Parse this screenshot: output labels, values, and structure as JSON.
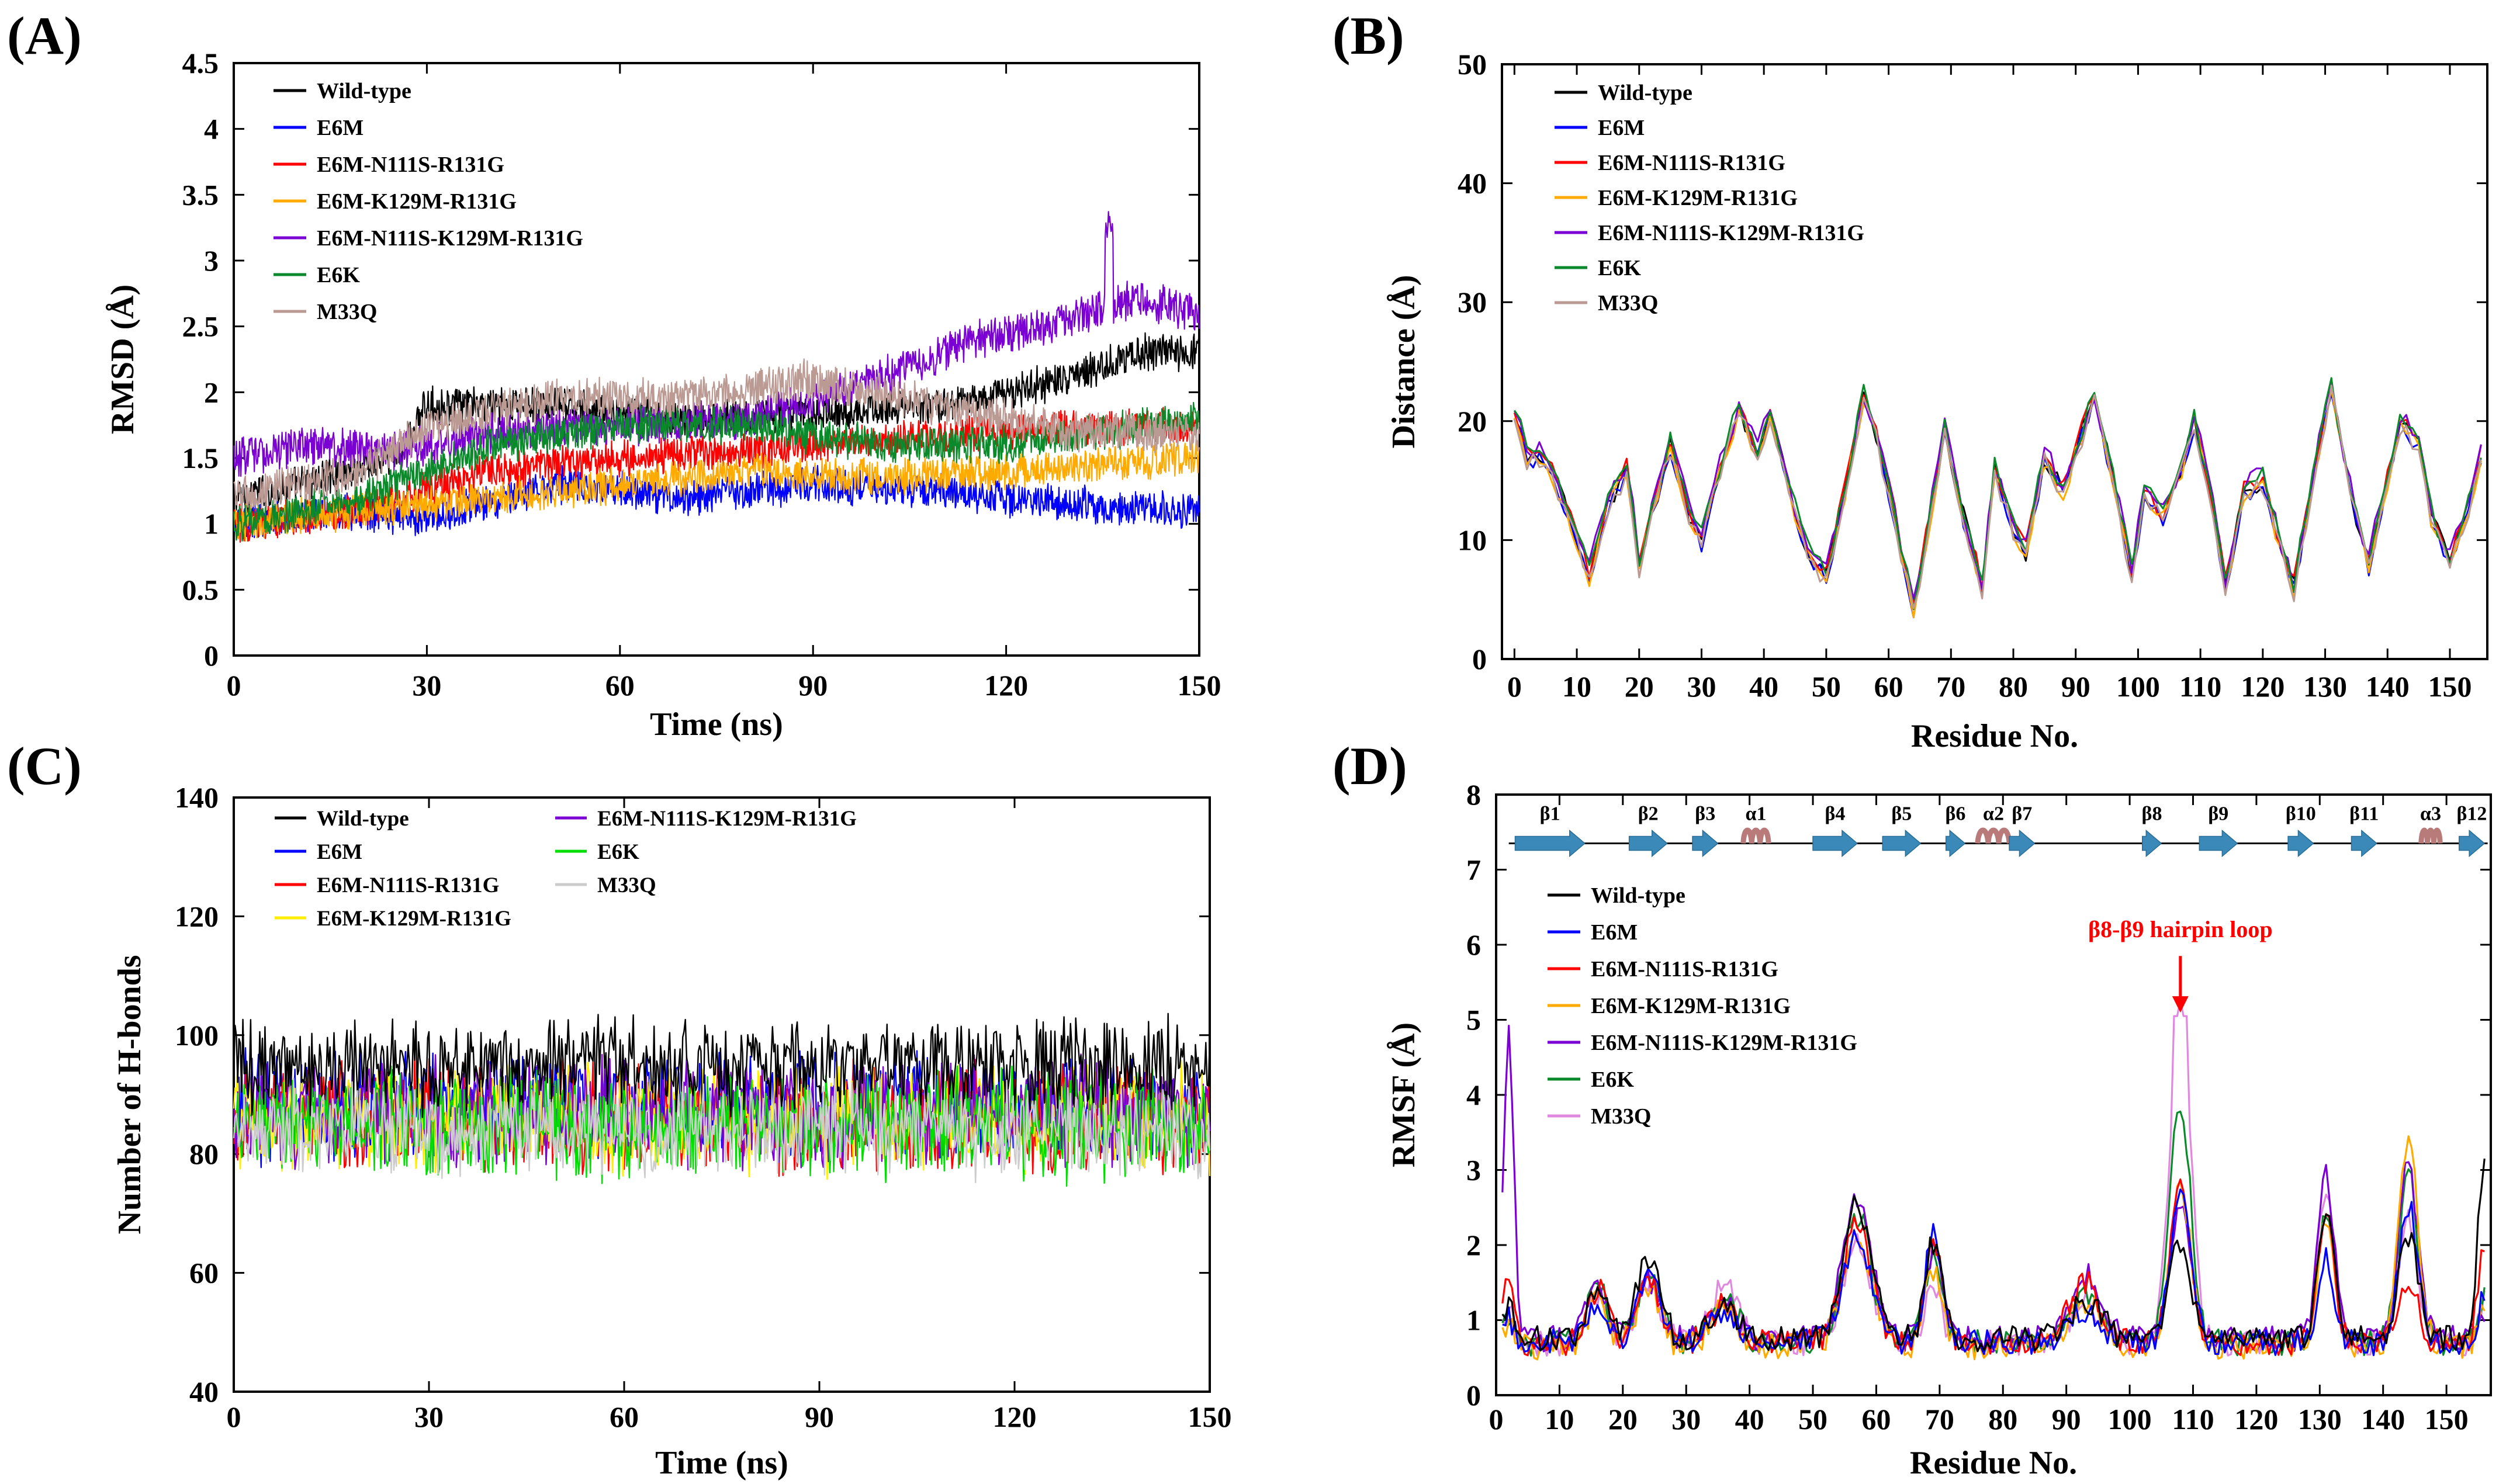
{
  "chart_data": [
    {
      "type": "line",
      "panel_label": "(A)",
      "title": "",
      "xlabel": "Time (ns)",
      "ylabel": "RMSD (Å)",
      "xlim": [
        0,
        150
      ],
      "ylim": [
        0,
        4.5
      ],
      "xticks": [
        "0",
        "30",
        "60",
        "90",
        "120",
        "150"
      ],
      "yticks": [
        "0",
        "0.5",
        "1",
        "1.5",
        "2",
        "2.5",
        "3",
        "3.5",
        "4",
        "4.5"
      ],
      "legend_position": "top-left",
      "legend_columns": 1,
      "series": [
        {
          "name": "Wild-type",
          "color": "#000000",
          "noise": 0.12,
          "x": [
            0,
            10,
            25,
            30,
            50,
            70,
            90,
            110,
            130,
            140,
            150
          ],
          "values": [
            1.2,
            1.3,
            1.5,
            1.9,
            1.9,
            1.8,
            1.85,
            1.9,
            2.1,
            2.3,
            2.3
          ]
        },
        {
          "name": "E6M",
          "color": "#0000ff",
          "noise": 0.12,
          "x": [
            0,
            15,
            30,
            50,
            70,
            90,
            110,
            130,
            150
          ],
          "values": [
            1.0,
            1.1,
            1.05,
            1.3,
            1.2,
            1.3,
            1.25,
            1.15,
            1.1
          ]
        },
        {
          "name": "E6M-N111S-R131G",
          "color": "#ff0000",
          "noise": 0.12,
          "x": [
            0,
            20,
            40,
            60,
            80,
            100,
            120,
            150
          ],
          "values": [
            1.0,
            1.1,
            1.4,
            1.5,
            1.55,
            1.65,
            1.7,
            1.75
          ]
        },
        {
          "name": "E6M-K129M-R131G",
          "color": "#ffaa00",
          "noise": 0.12,
          "x": [
            0,
            20,
            40,
            60,
            80,
            100,
            120,
            150
          ],
          "values": [
            1.0,
            1.1,
            1.2,
            1.3,
            1.4,
            1.35,
            1.4,
            1.5
          ]
        },
        {
          "name": "E6M-N111S-K129M-R131G",
          "color": "#7b00d4",
          "noise": 0.13,
          "x": [
            0,
            10,
            25,
            40,
            60,
            80,
            100,
            115,
            130,
            140,
            150
          ],
          "values": [
            1.5,
            1.6,
            1.55,
            1.7,
            1.75,
            1.8,
            2.1,
            2.4,
            2.55,
            2.7,
            2.6
          ]
        },
        {
          "name": "E6K",
          "color": "#0a8a2a",
          "noise": 0.12,
          "x": [
            0,
            20,
            40,
            60,
            80,
            100,
            120,
            150
          ],
          "values": [
            1.0,
            1.2,
            1.6,
            1.75,
            1.75,
            1.6,
            1.6,
            1.8
          ]
        },
        {
          "name": "M33Q",
          "color": "#bc9a94",
          "noise": 0.13,
          "x": [
            0,
            20,
            30,
            50,
            70,
            90,
            110,
            130,
            150
          ],
          "values": [
            1.2,
            1.4,
            1.75,
            1.95,
            1.95,
            2.1,
            1.9,
            1.7,
            1.7
          ]
        }
      ]
    },
    {
      "type": "line",
      "panel_label": "(B)",
      "title": "",
      "xlabel": "Residue No.",
      "ylabel": "Distance (Å)",
      "xlim": [
        -2,
        156
      ],
      "ylim": [
        0,
        50
      ],
      "xticks": [
        "0",
        "10",
        "20",
        "30",
        "40",
        "50",
        "60",
        "70",
        "80",
        "90",
        "100",
        "110",
        "120",
        "130",
        "140",
        "150"
      ],
      "yticks": [
        "0",
        "10",
        "20",
        "30",
        "40",
        "50"
      ],
      "legend_position": "top-left",
      "legend_columns": 1,
      "base_profile": {
        "x": [
          0,
          2,
          5,
          8,
          10,
          12,
          15,
          18,
          20,
          22,
          25,
          28,
          30,
          33,
          36,
          39,
          41,
          44,
          47,
          50,
          53,
          56,
          58,
          61,
          64,
          67,
          69,
          72,
          75,
          77,
          80,
          82,
          85,
          88,
          91,
          93,
          96,
          99,
          101,
          104,
          107,
          109,
          112,
          114,
          117,
          120,
          122,
          125,
          128,
          131,
          134,
          137,
          140,
          142,
          145,
          147,
          150,
          152,
          155
        ],
        "values": [
          21,
          17,
          17,
          13,
          10,
          7,
          13,
          16,
          8,
          12,
          18,
          12,
          10,
          16,
          21,
          17,
          21,
          14,
          9,
          7,
          14,
          22,
          19,
          12,
          4,
          13,
          19,
          12,
          6,
          16,
          11,
          9,
          17,
          14,
          19,
          22,
          15,
          7,
          14,
          12,
          16,
          20,
          13,
          6,
          14,
          15,
          11,
          6,
          15,
          23,
          14,
          8,
          15,
          20,
          18,
          12,
          8,
          11,
          17
        ]
      },
      "series": [
        {
          "name": "Wild-type",
          "color": "#000000",
          "offset": 0.0,
          "noise": 0.8
        },
        {
          "name": "E6M",
          "color": "#0000ff",
          "offset": -0.3,
          "noise": 0.7
        },
        {
          "name": "E6M-N111S-R131G",
          "color": "#ff0000",
          "offset": 0.3,
          "noise": 0.7
        },
        {
          "name": "E6M-K129M-R131G",
          "color": "#ffaa00",
          "offset": -0.2,
          "noise": 0.7
        },
        {
          "name": "E6M-N111S-K129M-R131G",
          "color": "#7b00d4",
          "offset": 0.5,
          "noise": 0.9
        },
        {
          "name": "E6K",
          "color": "#0a8a2a",
          "offset": 0.4,
          "noise": 0.8
        },
        {
          "name": "M33Q",
          "color": "#bc9a94",
          "offset": -0.4,
          "noise": 0.8
        }
      ]
    },
    {
      "type": "line",
      "panel_label": "(C)",
      "title": "",
      "xlabel": "Time (ns)",
      "ylabel": "Number of H-bonds",
      "xlim": [
        0,
        150
      ],
      "ylim": [
        40,
        140
      ],
      "xticks": [
        "0",
        "30",
        "60",
        "90",
        "120",
        "150"
      ],
      "yticks": [
        "40",
        "60",
        "80",
        "100",
        "120",
        "140"
      ],
      "legend_position": "top",
      "legend_columns": 2,
      "series": [
        {
          "name": "Wild-type",
          "color": "#000000",
          "mean": 95,
          "noise": 6
        },
        {
          "name": "E6M",
          "color": "#0000ff",
          "mean": 88,
          "noise": 7
        },
        {
          "name": "E6M-N111S-R131G",
          "color": "#ff0000",
          "mean": 86,
          "noise": 7
        },
        {
          "name": "E6M-K129M-R131G",
          "color": "#ffee00",
          "mean": 86,
          "noise": 7
        },
        {
          "name": "E6M-N111S-K129M-R131G",
          "color": "#7b00d4",
          "mean": 87,
          "noise": 7
        },
        {
          "name": "E6K",
          "color": "#00dd00",
          "mean": 85,
          "noise": 7
        },
        {
          "name": "M33Q",
          "color": "#cccccc",
          "mean": 84,
          "noise": 6
        }
      ]
    },
    {
      "type": "line",
      "panel_label": "(D)",
      "title": "",
      "xlabel": "Residue No.",
      "ylabel": "RMSF (Å)",
      "xlim": [
        0,
        157
      ],
      "ylim": [
        0,
        8
      ],
      "xticks": [
        "0",
        "10",
        "20",
        "30",
        "40",
        "50",
        "60",
        "70",
        "80",
        "90",
        "100",
        "110",
        "120",
        "130",
        "140",
        "150"
      ],
      "yticks": [
        "0",
        "1",
        "2",
        "3",
        "4",
        "5",
        "6",
        "7",
        "8"
      ],
      "legend_position": "middle-left",
      "legend_columns": 1,
      "annotation": {
        "text": "β8-β9 hairpin loop",
        "x": 108,
        "y": 5.05,
        "color": "#ff0000"
      },
      "secondary_structure": [
        {
          "label": "β1",
          "type": "strand",
          "start": 3,
          "end": 14
        },
        {
          "label": "β2",
          "type": "strand",
          "start": 21,
          "end": 27
        },
        {
          "label": "β3",
          "type": "strand",
          "start": 31,
          "end": 35
        },
        {
          "label": "α1",
          "type": "helix",
          "start": 39,
          "end": 43
        },
        {
          "label": "β4",
          "type": "strand",
          "start": 50,
          "end": 57
        },
        {
          "label": "β5",
          "type": "strand",
          "start": 61,
          "end": 67
        },
        {
          "label": "β6",
          "type": "strand",
          "start": 71,
          "end": 74
        },
        {
          "label": "α2",
          "type": "helix",
          "start": 76,
          "end": 81
        },
        {
          "label": "β7",
          "type": "strand",
          "start": 81,
          "end": 85
        },
        {
          "label": "β8",
          "type": "strand",
          "start": 102,
          "end": 105
        },
        {
          "label": "β9",
          "type": "strand",
          "start": 111,
          "end": 117
        },
        {
          "label": "β10",
          "type": "strand",
          "start": 125,
          "end": 129
        },
        {
          "label": "β11",
          "type": "strand",
          "start": 135,
          "end": 139
        },
        {
          "label": "α3",
          "type": "helix",
          "start": 146,
          "end": 149
        },
        {
          "label": "β12",
          "type": "strand",
          "start": 152,
          "end": 156
        }
      ],
      "peaks": [
        {
          "x": 2,
          "width": 0.8,
          "height": [
            0.5,
            0.3,
            0.9,
            0.3,
            4.0,
            0.3,
            0.4
          ]
        },
        {
          "x": 16,
          "width": 1.6,
          "height": [
            0.6,
            0.5,
            0.7,
            0.6,
            0.7,
            0.8,
            0.6
          ]
        },
        {
          "x": 24,
          "width": 1.8,
          "height": [
            1.1,
            0.9,
            0.9,
            0.8,
            0.8,
            0.9,
            0.8
          ]
        },
        {
          "x": 36,
          "width": 2.0,
          "height": [
            0.5,
            0.4,
            0.5,
            0.5,
            0.5,
            0.6,
            0.8
          ]
        },
        {
          "x": 57,
          "width": 2.2,
          "height": [
            1.8,
            1.4,
            1.6,
            1.5,
            1.9,
            1.7,
            1.3
          ]
        },
        {
          "x": 69,
          "width": 1.3,
          "height": [
            1.3,
            1.5,
            1.4,
            1.0,
            1.2,
            1.2,
            0.8
          ]
        },
        {
          "x": 93,
          "width": 2.5,
          "height": [
            0.5,
            0.4,
            0.8,
            0.6,
            0.9,
            0.6,
            0.5
          ]
        },
        {
          "x": 108,
          "width": 1.6,
          "height": [
            1.3,
            1.9,
            2.1,
            2.2,
            1.8,
            3.2,
            4.4
          ]
        },
        {
          "x": 131,
          "width": 1.3,
          "height": [
            1.6,
            1.1,
            1.8,
            1.6,
            2.2,
            1.8,
            2.0
          ]
        },
        {
          "x": 144,
          "width": 1.5,
          "height": [
            1.4,
            1.8,
            0.8,
            2.8,
            2.3,
            2.2,
            1.6
          ]
        },
        {
          "x": 156,
          "width": 1.0,
          "height": [
            2.4,
            0.6,
            1.3,
            0.6,
            0.4,
            0.6,
            0.6
          ]
        }
      ],
      "series": [
        {
          "name": "Wild-type",
          "color": "#000000",
          "base": 0.75
        },
        {
          "name": "E6M",
          "color": "#0000ff",
          "base": 0.7
        },
        {
          "name": "E6M-N111S-R131G",
          "color": "#ff0000",
          "base": 0.7
        },
        {
          "name": "E6M-K129M-R131G",
          "color": "#ffaa00",
          "base": 0.65
        },
        {
          "name": "E6M-N111S-K129M-R131G",
          "color": "#7b00d4",
          "base": 0.75
        },
        {
          "name": "E6K",
          "color": "#0a8a2a",
          "base": 0.7
        },
        {
          "name": "M33Q",
          "color": "#e088e0",
          "base": 0.7
        }
      ]
    }
  ]
}
